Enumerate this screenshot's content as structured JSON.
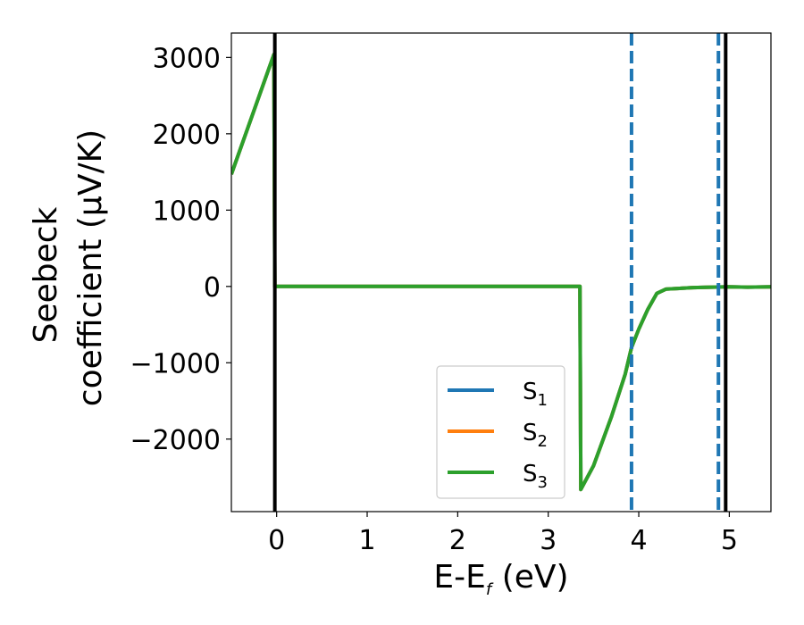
{
  "chart_data": {
    "type": "line",
    "xlabel": {
      "base": "E-E",
      "sub": "f",
      "rest": " (eV)"
    },
    "ylabel": {
      "line1": "Seebeck",
      "line2": "coefficient  (μV/K)"
    },
    "xlim": [
      -0.5,
      5.46
    ],
    "ylim": [
      -2950,
      3320
    ],
    "xticks": [
      0,
      1,
      2,
      3,
      4,
      5
    ],
    "yticks": [
      -2000,
      -1000,
      0,
      1000,
      2000,
      3000
    ],
    "xtick_labels": [
      "0",
      "1",
      "2",
      "3",
      "4",
      "5"
    ],
    "ytick_labels": [
      "−2000",
      "−1000",
      "0",
      "1000",
      "2000",
      "3000"
    ],
    "vlines_solid": [
      -0.02,
      4.96
    ],
    "vlines_dashed": [
      3.92,
      4.88
    ],
    "legend_position": "lower-right",
    "series": [
      {
        "name": "S",
        "sub": "1",
        "color": "#1f77b4",
        "x": [
          -0.5,
          -0.03,
          -0.02,
          3.35,
          3.36,
          3.5,
          3.7,
          3.85,
          3.92,
          4.0,
          4.1,
          4.2,
          4.3,
          4.45,
          4.6,
          4.8,
          5.0,
          5.2,
          5.46
        ],
        "y": [
          1470,
          3040,
          0,
          0,
          -2660,
          -2350,
          -1700,
          -1150,
          -800,
          -560,
          -300,
          -90,
          -35,
          -25,
          -15,
          -10,
          -5,
          -10,
          -5
        ]
      },
      {
        "name": "S",
        "sub": "2",
        "color": "#ff7f0e",
        "x": [
          -0.5,
          -0.03,
          -0.02,
          3.35,
          3.36,
          3.5,
          3.7,
          3.85,
          3.92,
          4.0,
          4.1,
          4.2,
          4.3,
          4.45,
          4.6,
          4.8,
          5.0,
          5.2,
          5.46
        ],
        "y": [
          1470,
          3040,
          0,
          0,
          -2660,
          -2350,
          -1700,
          -1150,
          -800,
          -560,
          -300,
          -90,
          -35,
          -25,
          -15,
          -10,
          -5,
          -10,
          -5
        ]
      },
      {
        "name": "S",
        "sub": "3",
        "color": "#2ca02c",
        "x": [
          -0.5,
          -0.03,
          -0.02,
          3.35,
          3.36,
          3.5,
          3.7,
          3.85,
          3.92,
          4.0,
          4.1,
          4.2,
          4.3,
          4.45,
          4.6,
          4.8,
          5.0,
          5.2,
          5.46
        ],
        "y": [
          1470,
          3040,
          0,
          0,
          -2660,
          -2350,
          -1700,
          -1150,
          -800,
          -560,
          -300,
          -90,
          -35,
          -25,
          -15,
          -10,
          -5,
          -10,
          -5
        ]
      }
    ]
  }
}
